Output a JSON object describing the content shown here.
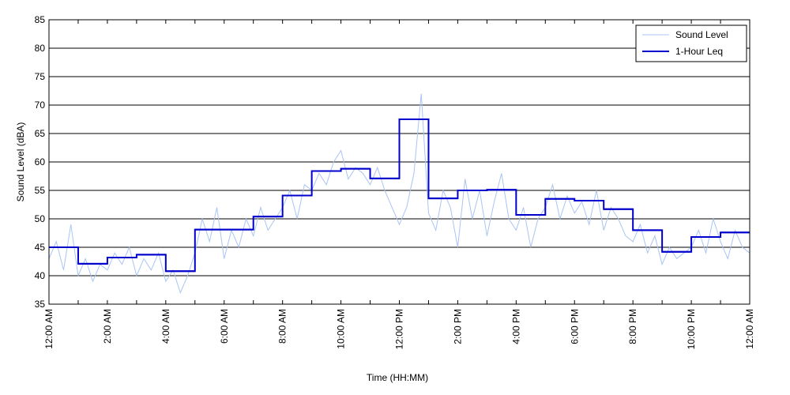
{
  "chart_data": {
    "type": "line",
    "xlabel": "Time (HH:MM)",
    "ylabel": "Sound Level (dBA)",
    "xlim": [
      0,
      24
    ],
    "ylim": [
      35,
      85
    ],
    "yticks": [
      35,
      40,
      45,
      50,
      55,
      60,
      65,
      70,
      75,
      80,
      85
    ],
    "xticks": [
      {
        "value": 0,
        "label": "12:00 AM"
      },
      {
        "value": 2,
        "label": "2:00 AM"
      },
      {
        "value": 4,
        "label": "4:00 AM"
      },
      {
        "value": 6,
        "label": "6:00 AM"
      },
      {
        "value": 8,
        "label": "8:00 AM"
      },
      {
        "value": 10,
        "label": "10:00 AM"
      },
      {
        "value": 12,
        "label": "12:00 PM"
      },
      {
        "value": 14,
        "label": "2:00 PM"
      },
      {
        "value": 16,
        "label": "4:00 PM"
      },
      {
        "value": 18,
        "label": "6:00 PM"
      },
      {
        "value": 20,
        "label": "8:00 PM"
      },
      {
        "value": 22,
        "label": "10:00 PM"
      },
      {
        "value": 24,
        "label": "12:00 AM"
      }
    ],
    "xminorticks": [
      1,
      3,
      5,
      7,
      9,
      11,
      13,
      15,
      17,
      19,
      21,
      23
    ],
    "grid": true,
    "legend": "upper right",
    "series": [
      {
        "name": "Sound Level",
        "color": "#a9c4f5",
        "x": [
          0,
          0.25,
          0.5,
          0.75,
          1,
          1.25,
          1.5,
          1.75,
          2,
          2.25,
          2.5,
          2.75,
          3,
          3.25,
          3.5,
          3.75,
          4,
          4.25,
          4.5,
          4.75,
          5,
          5.25,
          5.5,
          5.75,
          6,
          6.25,
          6.5,
          6.75,
          7,
          7.25,
          7.5,
          7.75,
          8,
          8.25,
          8.5,
          8.75,
          9,
          9.25,
          9.5,
          9.75,
          10,
          10.25,
          10.5,
          10.75,
          11,
          11.25,
          11.5,
          11.75,
          12,
          12.25,
          12.5,
          12.75,
          13,
          13.25,
          13.5,
          13.75,
          14,
          14.25,
          14.5,
          14.75,
          15,
          15.25,
          15.5,
          15.75,
          16,
          16.25,
          16.5,
          16.75,
          17,
          17.25,
          17.5,
          17.75,
          18,
          18.25,
          18.5,
          18.75,
          19,
          19.25,
          19.5,
          19.75,
          20,
          20.25,
          20.5,
          20.75,
          21,
          21.25,
          21.5,
          21.75,
          22,
          22.25,
          22.5,
          22.75,
          23,
          23.25,
          23.5,
          23.75,
          24
        ],
        "values": [
          43,
          46,
          41,
          49,
          40,
          43,
          39,
          42,
          41,
          44,
          42,
          45,
          40,
          43,
          41,
          44,
          39,
          41,
          37,
          40,
          44,
          50,
          46,
          52,
          43,
          48,
          45,
          50,
          47,
          52,
          48,
          50,
          52,
          55,
          50,
          56,
          55,
          58,
          56,
          60,
          62,
          57,
          59,
          58,
          56,
          59,
          55,
          52,
          49,
          52,
          58,
          72,
          51,
          48,
          55,
          52,
          45,
          57,
          50,
          55,
          47,
          53,
          58,
          50,
          48,
          52,
          45,
          50,
          52,
          56,
          50,
          54,
          51,
          53,
          49,
          55,
          48,
          52,
          50,
          47,
          46,
          49,
          44,
          47,
          42,
          45,
          43,
          44,
          45,
          48,
          44,
          50,
          46,
          43,
          48,
          45,
          44
        ]
      },
      {
        "name": "1-Hour Leq",
        "color": "#0000cc",
        "step": true,
        "x": [
          0,
          1,
          2,
          3,
          4,
          5,
          6,
          7,
          8,
          9,
          10,
          11,
          12,
          13,
          14,
          15,
          16,
          17,
          18,
          19,
          20,
          21,
          22,
          23
        ],
        "values": [
          45.0,
          42.1,
          43.2,
          43.7,
          40.8,
          48.1,
          48.1,
          50.4,
          54.1,
          58.4,
          58.8,
          57.1,
          67.5,
          53.6,
          55.0,
          55.1,
          50.7,
          53.5,
          53.2,
          51.7,
          48.0,
          44.2,
          46.8,
          47.6
        ]
      }
    ]
  }
}
